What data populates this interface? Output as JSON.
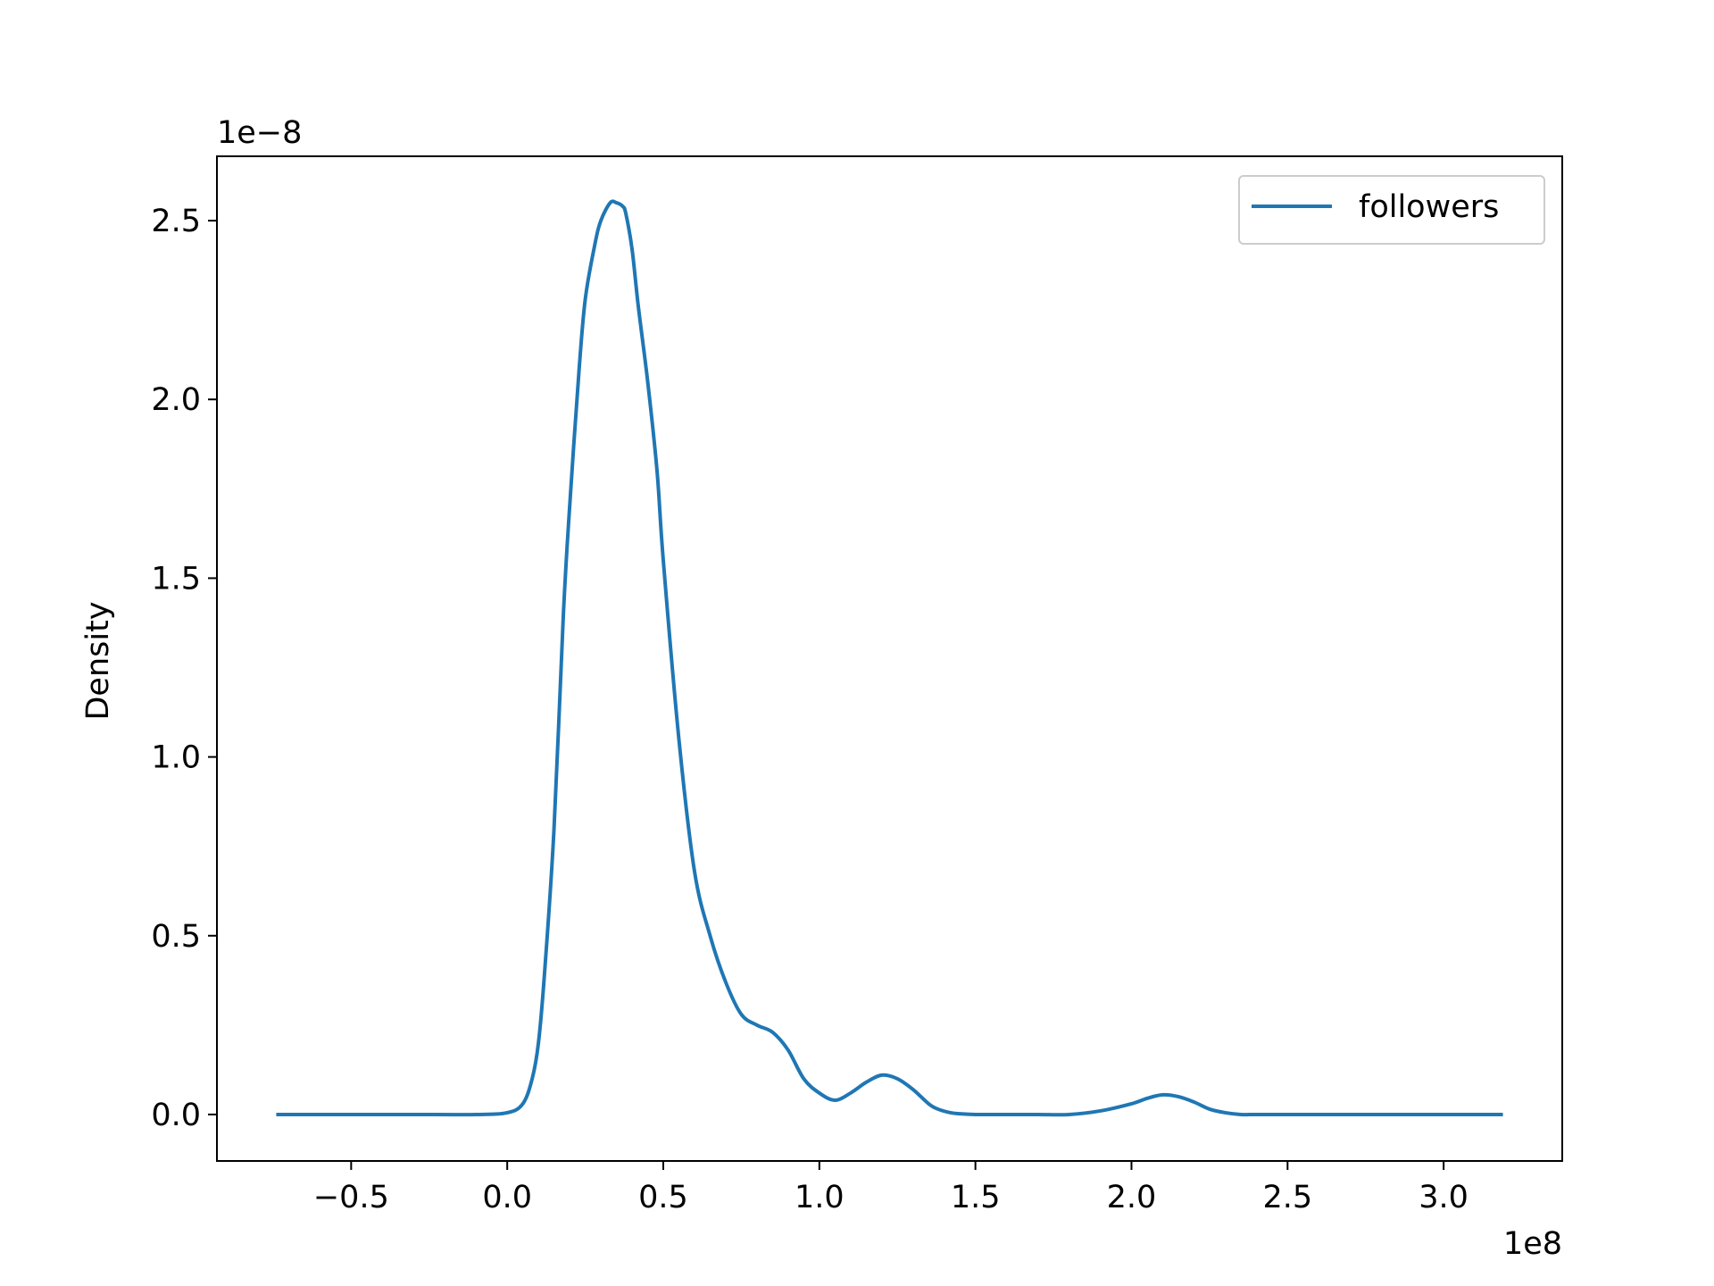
{
  "chart_data": {
    "type": "line",
    "title": "",
    "xlabel": "",
    "ylabel": "Density",
    "x_offset_label": "1e8",
    "y_offset_label": "1e−8",
    "xlim": [
      -0.93,
      3.38
    ],
    "ylim": [
      -0.13,
      2.68
    ],
    "x_ticks": [
      -0.5,
      0.0,
      0.5,
      1.0,
      1.5,
      2.0,
      2.5,
      3.0
    ],
    "x_tick_labels": [
      "−0.5",
      "0.0",
      "0.5",
      "1.0",
      "1.5",
      "2.0",
      "2.5",
      "3.0"
    ],
    "y_ticks": [
      0.0,
      0.5,
      1.0,
      1.5,
      2.0,
      2.5
    ],
    "y_tick_labels": [
      "0.0",
      "0.5",
      "1.0",
      "1.5",
      "2.0",
      "2.5"
    ],
    "grid": false,
    "legend_position": "top-right",
    "color": "#1f77b4",
    "series": [
      {
        "name": "followers",
        "x": [
          -0.74,
          -0.5,
          -0.3,
          -0.1,
          0.0,
          0.05,
          0.08,
          0.1,
          0.12,
          0.15,
          0.18,
          0.2,
          0.23,
          0.25,
          0.28,
          0.3,
          0.33,
          0.35,
          0.37,
          0.38,
          0.4,
          0.42,
          0.45,
          0.48,
          0.5,
          0.55,
          0.6,
          0.65,
          0.7,
          0.75,
          0.8,
          0.85,
          0.9,
          0.95,
          1.0,
          1.05,
          1.1,
          1.15,
          1.2,
          1.25,
          1.3,
          1.35,
          1.38,
          1.42,
          1.45,
          1.5,
          1.55,
          1.6,
          1.7,
          1.8,
          1.9,
          2.0,
          2.05,
          2.1,
          2.15,
          2.2,
          2.25,
          2.3,
          2.35,
          2.4,
          2.5,
          2.7,
          2.9,
          3.1,
          3.19
        ],
        "y": [
          0.0,
          0.0,
          0.0,
          0.0,
          0.005,
          0.03,
          0.1,
          0.2,
          0.4,
          0.8,
          1.4,
          1.7,
          2.08,
          2.28,
          2.43,
          2.5,
          2.55,
          2.55,
          2.54,
          2.52,
          2.42,
          2.26,
          2.05,
          1.8,
          1.55,
          1.05,
          0.68,
          0.5,
          0.37,
          0.28,
          0.25,
          0.23,
          0.18,
          0.1,
          0.06,
          0.04,
          0.06,
          0.09,
          0.11,
          0.1,
          0.07,
          0.03,
          0.015,
          0.005,
          0.002,
          0.0,
          0.0,
          0.0,
          0.0,
          0.0,
          0.01,
          0.03,
          0.045,
          0.055,
          0.05,
          0.035,
          0.015,
          0.005,
          0.0,
          0.0,
          0.0,
          0.0,
          0.0,
          0.0,
          0.0
        ]
      }
    ]
  }
}
